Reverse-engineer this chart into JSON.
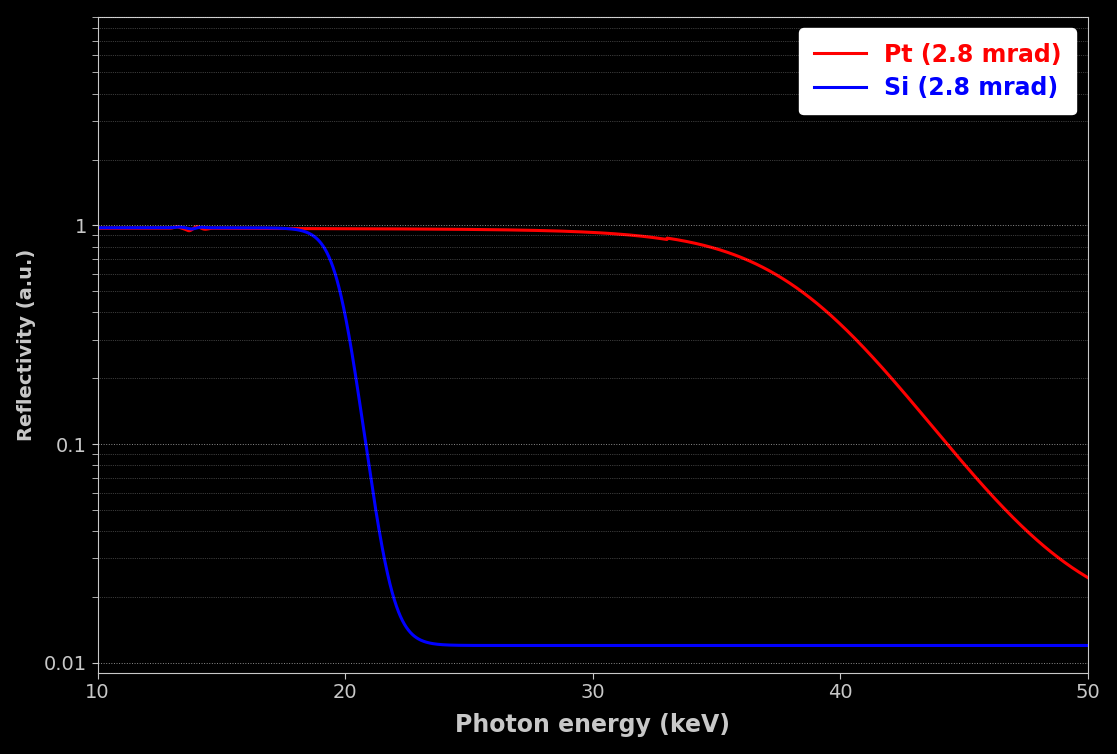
{
  "title": "",
  "xlabel": "Photon energy (keV)",
  "ylabel": "Reflectivity (a.u.)",
  "background_color": "#000000",
  "axes_bg_color": "#000000",
  "text_color": "#c8c8c8",
  "grid_color": "#ffffff",
  "xmin": 10,
  "xmax": 50,
  "pt_color": "#ff0000",
  "si_color": "#0000ff",
  "legend_label_pt": "Pt (2.8 mrad)",
  "legend_label_si": "Si (2.8 mrad)",
  "line_width": 2.2,
  "xlabel_fontsize": 17,
  "ylabel_fontsize": 14,
  "tick_fontsize": 14,
  "legend_fontsize": 17
}
